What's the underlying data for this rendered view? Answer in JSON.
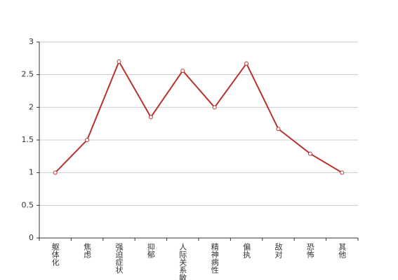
{
  "chart_data": {
    "type": "line",
    "categories": [
      "躯体化",
      "焦虑",
      "强迫症状",
      "抑郁",
      "人际关系敏感",
      "精神病性",
      "偏执",
      "敌对",
      "恐怖",
      "其他"
    ],
    "values": [
      1,
      1.5,
      2.7,
      1.85,
      2.56,
      2,
      2.67,
      1.67,
      1.29,
      1
    ],
    "color": "#b83230",
    "ylim": [
      0,
      3
    ],
    "yticks": [
      0,
      0.5,
      1,
      1.5,
      2,
      2.5,
      3
    ],
    "grid": true
  }
}
